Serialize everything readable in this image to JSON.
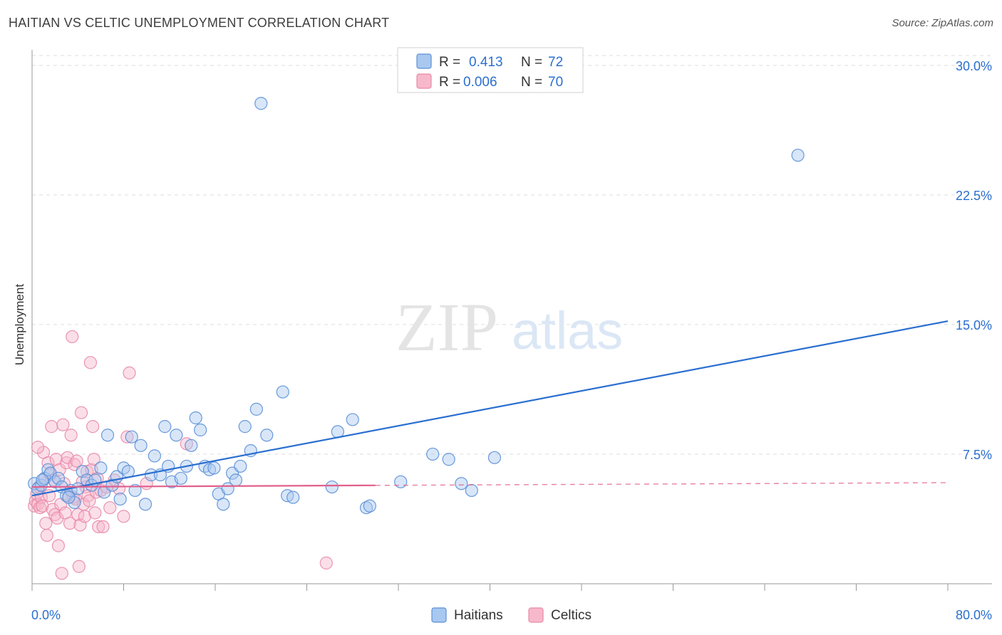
{
  "header": {
    "title": "HAITIAN VS CELTIC UNEMPLOYMENT CORRELATION CHART",
    "source": "Source: ZipAtlas.com"
  },
  "watermark": {
    "zip": "ZIP",
    "atlas": "atlas"
  },
  "legend_top": [
    {
      "r_label": "R =",
      "r_value": "0.413",
      "n_label": "N =",
      "n_value": "72"
    },
    {
      "r_label": "R =",
      "r_value": "0.006",
      "n_label": "N =",
      "n_value": "70"
    }
  ],
  "legend_bottom": [
    "Haitians",
    "Celtics"
  ],
  "colors": {
    "blue_fill": "#a9c8f0",
    "blue_stroke": "#5b8fd6",
    "blue_line": "#2a6fd0",
    "pink_fill": "#f7b8cc",
    "pink_stroke": "#e889a8",
    "pink_line": "#e0608c",
    "value_text": "#2a6fd0",
    "grid": "#dddddd"
  },
  "chart_data": {
    "type": "scatter",
    "ylabel": "Unemployment",
    "xlim": [
      0,
      80
    ],
    "ylim": [
      0,
      30.9
    ],
    "x_tick_labels": [
      "0.0%",
      "80.0%"
    ],
    "y_ticks": [
      7.5,
      15.0,
      22.5,
      30.0
    ],
    "y_tick_labels": [
      "7.5%",
      "15.0%",
      "22.5%",
      "30.0%"
    ],
    "series": [
      {
        "name": "Haitians",
        "color": "#a9c8f0",
        "trend": {
          "x": [
            0,
            80
          ],
          "y": [
            5.1,
            15.2
          ],
          "dashed_after": null
        },
        "points": [
          [
            0.2,
            5.8
          ],
          [
            0.5,
            5.5
          ],
          [
            0.8,
            5.7
          ],
          [
            1.1,
            6.1
          ],
          [
            1.4,
            6.6
          ],
          [
            1.6,
            6.4
          ],
          [
            2.0,
            5.9
          ],
          [
            2.3,
            6.1
          ],
          [
            2.6,
            5.6
          ],
          [
            3.0,
            5.1
          ],
          [
            3.4,
            5.4
          ],
          [
            3.7,
            4.7
          ],
          [
            4.0,
            5.5
          ],
          [
            4.4,
            6.5
          ],
          [
            4.8,
            6.0
          ],
          [
            5.2,
            5.7
          ],
          [
            5.5,
            6.0
          ],
          [
            6.0,
            6.7
          ],
          [
            6.3,
            5.3
          ],
          [
            6.6,
            8.6
          ],
          [
            7.0,
            5.7
          ],
          [
            7.4,
            6.2
          ],
          [
            7.7,
            4.9
          ],
          [
            8.0,
            6.7
          ],
          [
            8.4,
            6.5
          ],
          [
            8.7,
            8.5
          ],
          [
            9.0,
            5.4
          ],
          [
            9.5,
            8.0
          ],
          [
            9.9,
            4.6
          ],
          [
            10.4,
            6.3
          ],
          [
            10.7,
            7.4
          ],
          [
            11.2,
            6.3
          ],
          [
            11.6,
            9.1
          ],
          [
            11.9,
            6.8
          ],
          [
            12.2,
            5.9
          ],
          [
            12.6,
            8.6
          ],
          [
            13.0,
            6.1
          ],
          [
            13.5,
            6.8
          ],
          [
            13.9,
            8.0
          ],
          [
            14.3,
            9.6
          ],
          [
            14.7,
            8.9
          ],
          [
            15.1,
            6.8
          ],
          [
            15.5,
            6.6
          ],
          [
            15.9,
            6.7
          ],
          [
            16.3,
            5.2
          ],
          [
            16.7,
            4.6
          ],
          [
            17.1,
            5.5
          ],
          [
            17.5,
            6.4
          ],
          [
            17.8,
            6.0
          ],
          [
            18.2,
            6.8
          ],
          [
            18.6,
            9.1
          ],
          [
            19.1,
            7.7
          ],
          [
            19.6,
            10.1
          ],
          [
            20.0,
            27.8
          ],
          [
            20.5,
            8.6
          ],
          [
            21.9,
            11.1
          ],
          [
            22.3,
            5.1
          ],
          [
            22.8,
            5.0
          ],
          [
            26.2,
            5.6
          ],
          [
            26.7,
            8.8
          ],
          [
            28.0,
            9.5
          ],
          [
            29.2,
            4.4
          ],
          [
            29.5,
            4.5
          ],
          [
            32.2,
            5.9
          ],
          [
            35.0,
            7.5
          ],
          [
            36.4,
            7.2
          ],
          [
            37.5,
            5.8
          ],
          [
            38.4,
            5.4
          ],
          [
            40.4,
            7.3
          ],
          [
            66.9,
            24.8
          ],
          [
            0.9,
            6.0
          ],
          [
            3.2,
            5.0
          ]
        ]
      },
      {
        "name": "Celtics",
        "color": "#f7b8cc",
        "trend": {
          "x": [
            0,
            80
          ],
          "y": [
            5.6,
            5.85
          ],
          "dashed_after": 30
        },
        "points": [
          [
            0.2,
            4.5
          ],
          [
            0.3,
            4.8
          ],
          [
            0.4,
            5.2
          ],
          [
            0.5,
            4.6
          ],
          [
            0.6,
            5.6
          ],
          [
            0.7,
            4.4
          ],
          [
            0.8,
            5.0
          ],
          [
            0.9,
            4.5
          ],
          [
            1.0,
            7.6
          ],
          [
            1.1,
            6.1
          ],
          [
            1.2,
            3.5
          ],
          [
            1.3,
            2.8
          ],
          [
            1.4,
            7.0
          ],
          [
            1.5,
            5.1
          ],
          [
            1.6,
            6.3
          ],
          [
            1.7,
            9.1
          ],
          [
            1.8,
            4.3
          ],
          [
            1.9,
            6.0
          ],
          [
            2.0,
            4.0
          ],
          [
            2.1,
            7.2
          ],
          [
            2.2,
            3.8
          ],
          [
            2.3,
            2.2
          ],
          [
            2.4,
            6.6
          ],
          [
            2.5,
            4.6
          ],
          [
            2.6,
            0.6
          ],
          [
            2.7,
            9.2
          ],
          [
            2.8,
            5.8
          ],
          [
            2.9,
            4.1
          ],
          [
            3.0,
            7.0
          ],
          [
            3.1,
            7.3
          ],
          [
            3.2,
            5.1
          ],
          [
            3.3,
            3.5
          ],
          [
            3.4,
            8.6
          ],
          [
            3.5,
            14.3
          ],
          [
            3.6,
            5.0
          ],
          [
            3.7,
            6.9
          ],
          [
            3.8,
            4.9
          ],
          [
            3.9,
            7.1
          ],
          [
            4.0,
            4.0
          ],
          [
            4.1,
            1.0
          ],
          [
            4.2,
            3.4
          ],
          [
            4.3,
            9.9
          ],
          [
            4.4,
            5.9
          ],
          [
            4.5,
            4.6
          ],
          [
            4.6,
            3.9
          ],
          [
            4.7,
            5.6
          ],
          [
            4.8,
            6.5
          ],
          [
            4.9,
            5.1
          ],
          [
            5.0,
            4.8
          ],
          [
            5.1,
            12.8
          ],
          [
            5.2,
            6.6
          ],
          [
            5.3,
            9.1
          ],
          [
            5.4,
            7.2
          ],
          [
            5.5,
            4.1
          ],
          [
            5.6,
            5.3
          ],
          [
            5.7,
            6.1
          ],
          [
            5.8,
            3.3
          ],
          [
            6.0,
            5.4
          ],
          [
            6.2,
            3.3
          ],
          [
            6.5,
            5.6
          ],
          [
            6.8,
            4.4
          ],
          [
            7.2,
            6.0
          ],
          [
            7.6,
            5.5
          ],
          [
            8.0,
            3.9
          ],
          [
            8.3,
            8.5
          ],
          [
            8.5,
            12.2
          ],
          [
            10.0,
            5.8
          ],
          [
            13.5,
            8.1
          ],
          [
            25.7,
            1.2
          ],
          [
            0.5,
            7.9
          ]
        ]
      }
    ]
  }
}
